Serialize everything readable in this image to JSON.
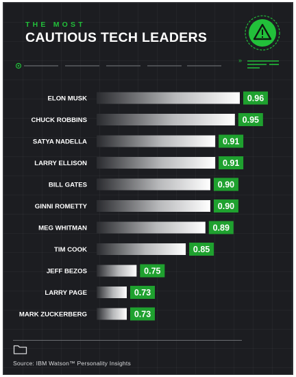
{
  "header": {
    "kicker": "THE MOST",
    "title": "CAUTIOUS TECH LEADERS"
  },
  "chart_data": {
    "type": "bar",
    "orientation": "horizontal",
    "categories": [
      "ELON MUSK",
      "CHUCK ROBBINS",
      "SATYA NADELLA",
      "LARRY ELLISON",
      "BILL GATES",
      "GINNI ROMETTY",
      "MEG WHITMAN",
      "TIM COOK",
      "JEFF BEZOS",
      "LARRY PAGE",
      "MARK ZUCKERBERG"
    ],
    "values": [
      0.96,
      0.95,
      0.91,
      0.91,
      0.9,
      0.9,
      0.89,
      0.85,
      0.75,
      0.73,
      0.73
    ],
    "value_labels": [
      "0.96",
      "0.95",
      "0.91",
      "0.91",
      "0.90",
      "0.90",
      "0.89",
      "0.85",
      "0.75",
      "0.73",
      "0.73"
    ],
    "title": "CAUTIOUS TECH LEADERS",
    "xlabel": "",
    "ylabel": "",
    "colors": {
      "label_box": "#1fa12f",
      "bar_end": "#ffffff",
      "bar_start": "#2a2b2f"
    }
  },
  "footer": {
    "source": "Source: IBM Watson™ Personality Insights",
    "icon": "folder-icon"
  },
  "colors": {
    "background": "#1c1d21",
    "accent": "#22c03a",
    "text": "#ffffff"
  },
  "badge_icon": "warning-triangle-icon"
}
